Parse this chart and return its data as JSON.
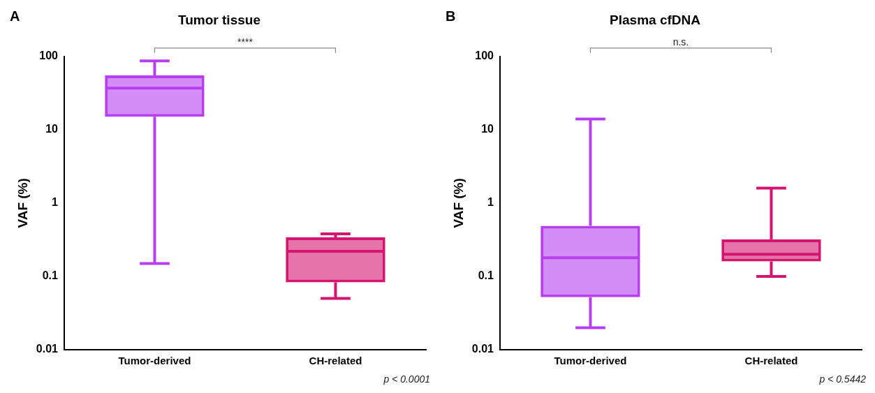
{
  "chart_data": [
    {
      "type": "box",
      "title": "Tumor tissue",
      "ylabel": "VAF (%)",
      "categories": [
        "Tumor-derived",
        "CH-related"
      ],
      "colors": [
        "#b83ff0",
        "#d4156f"
      ],
      "log": "y",
      "ylim": [
        0.01,
        100
      ],
      "yticks": [
        0.01,
        0.1,
        1,
        10,
        100
      ],
      "grid": false,
      "legend": false,
      "boxes": [
        {
          "low": 0.15,
          "q1": 15,
          "median": 37,
          "q3": 55,
          "high": 87
        },
        {
          "low": 0.05,
          "q1": 0.083,
          "median": 0.22,
          "q3": 0.34,
          "high": 0.38
        }
      ],
      "annotations": [
        "A",
        "****",
        "p < 0.0001"
      ]
    },
    {
      "type": "box",
      "title": "Plasma cfDNA",
      "ylabel": "VAF (%)",
      "categories": [
        "Tumor-derived",
        "CH-related"
      ],
      "colors": [
        "#b83ff0",
        "#d4156f"
      ],
      "log": "y",
      "ylim": [
        0.01,
        100
      ],
      "yticks": [
        0.01,
        0.1,
        1,
        10,
        100
      ],
      "grid": false,
      "legend": false,
      "boxes": [
        {
          "low": 0.02,
          "q1": 0.052,
          "median": 0.18,
          "q3": 0.49,
          "high": 14
        },
        {
          "low": 0.1,
          "q1": 0.16,
          "median": 0.2,
          "q3": 0.32,
          "high": 1.6
        }
      ],
      "annotations": [
        "B",
        "n.s.",
        "p < 0.5442"
      ]
    }
  ]
}
